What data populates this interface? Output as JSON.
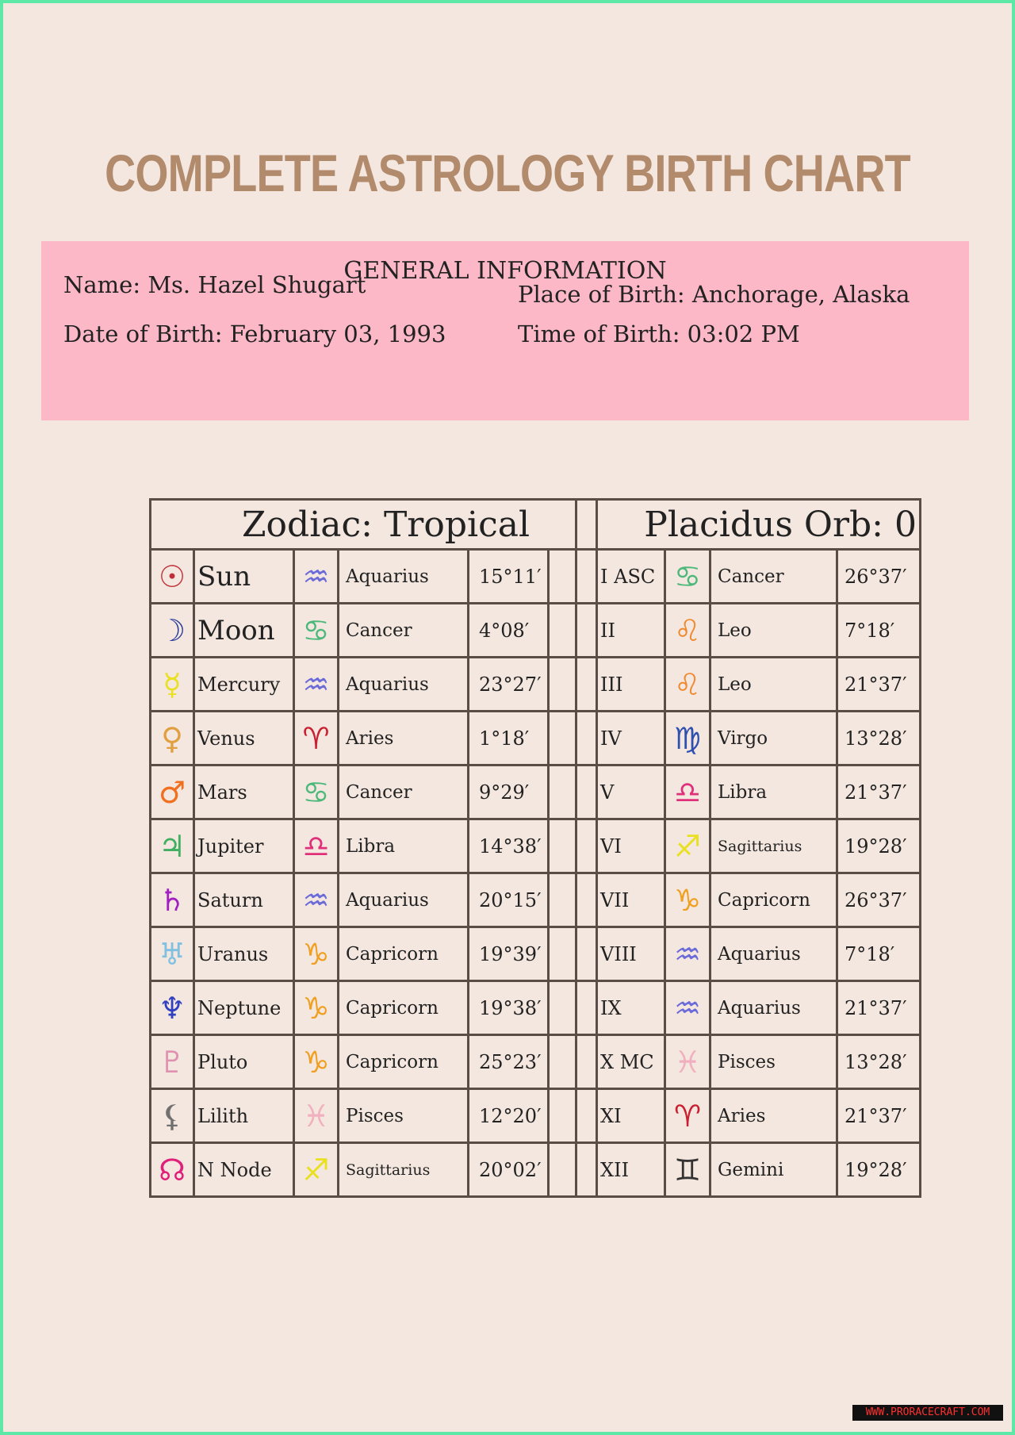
{
  "title": "COMPLETE ASTROLOGY BIRTH CHART",
  "general": {
    "heading": "GENERAL INFORMATION",
    "name": "Name: Ms. Hazel Shugart",
    "dob": "Date of Birth: February 03, 1993",
    "pob": "Place of Birth: Anchorage, Alaska",
    "tob": "Time of Birth: 03:02 PM"
  },
  "zodiac_header": "Zodiac: Tropical",
  "house_header": "Placidus Orb: 0",
  "planets": [
    {
      "glyph": "☉",
      "color": "#c0303a",
      "name": "Sun",
      "sign_glyph": "♒",
      "sign_color": "#6a6ad8",
      "sign": "Aquarius",
      "deg": "15°11′"
    },
    {
      "glyph": "☽",
      "color": "#2a3a9a",
      "name": "Moon",
      "sign_glyph": "♋",
      "sign_color": "#4cb87a",
      "sign": "Cancer",
      "deg": "4°08′"
    },
    {
      "glyph": "☿",
      "color": "#e8e020",
      "name": "Mercury",
      "sign_glyph": "♒",
      "sign_color": "#6a6ad8",
      "sign": "Aquarius",
      "deg": "23°27′"
    },
    {
      "glyph": "♀",
      "color": "#e0a040",
      "name": "Venus",
      "sign_glyph": "♈",
      "sign_color": "#c82030",
      "sign": "Aries",
      "deg": "1°18′"
    },
    {
      "glyph": "♂",
      "color": "#f07020",
      "name": "Mars",
      "sign_glyph": "♋",
      "sign_color": "#4cb87a",
      "sign": "Cancer",
      "deg": "9°29′"
    },
    {
      "glyph": "♃",
      "color": "#40b060",
      "name": "Jupiter",
      "sign_glyph": "♎",
      "sign_color": "#e0307a",
      "sign": "Libra",
      "deg": "14°38′"
    },
    {
      "glyph": "♄",
      "color": "#a020c0",
      "name": "Saturn",
      "sign_glyph": "♒",
      "sign_color": "#6a6ad8",
      "sign": "Aquarius",
      "deg": "20°15′"
    },
    {
      "glyph": "♅",
      "color": "#80c0e0",
      "name": "Uranus",
      "sign_glyph": "♑",
      "sign_color": "#f0a020",
      "sign": "Capricorn",
      "deg": "19°39′"
    },
    {
      "glyph": "♆",
      "color": "#3040c0",
      "name": "Neptune",
      "sign_glyph": "♑",
      "sign_color": "#f0a020",
      "sign": "Capricorn",
      "deg": "19°38′"
    },
    {
      "glyph": "♇",
      "color": "#e090b0",
      "name": "Pluto",
      "sign_glyph": "♑",
      "sign_color": "#f0a020",
      "sign": "Capricorn",
      "deg": "25°23′"
    },
    {
      "glyph": "⚸",
      "color": "#707070",
      "name": "Lilith",
      "sign_glyph": "♓",
      "sign_color": "#f0b0c0",
      "sign": "Pisces",
      "deg": "12°20′"
    },
    {
      "glyph": "☊",
      "color": "#e0207a",
      "name": "N Node",
      "sign_glyph": "♐",
      "sign_color": "#e8e020",
      "sign": "Sagittarius",
      "deg": "20°02′"
    }
  ],
  "houses": [
    {
      "house": "I ASC",
      "sign_glyph": "♋",
      "sign_color": "#4cb87a",
      "sign": "Cancer",
      "deg": "26°37′"
    },
    {
      "house": "II",
      "sign_glyph": "♌",
      "sign_color": "#f08a30",
      "sign": "Leo",
      "deg": "7°18′"
    },
    {
      "house": "III",
      "sign_glyph": "♌",
      "sign_color": "#f08a30",
      "sign": "Leo",
      "deg": "21°37′"
    },
    {
      "house": "IV",
      "sign_glyph": "♍",
      "sign_color": "#3050b0",
      "sign": "Virgo",
      "deg": "13°28′"
    },
    {
      "house": "V",
      "sign_glyph": "♎",
      "sign_color": "#e0307a",
      "sign": "Libra",
      "deg": "21°37′"
    },
    {
      "house": "VI",
      "sign_glyph": "♐",
      "sign_color": "#e8e020",
      "sign": "Sagittarius",
      "deg": "19°28′"
    },
    {
      "house": "VII",
      "sign_glyph": "♑",
      "sign_color": "#f0a020",
      "sign": "Capricorn",
      "deg": "26°37′"
    },
    {
      "house": "VIII",
      "sign_glyph": "♒",
      "sign_color": "#6a6ad8",
      "sign": "Aquarius",
      "deg": "7°18′"
    },
    {
      "house": "IX",
      "sign_glyph": "♒",
      "sign_color": "#6a6ad8",
      "sign": "Aquarius",
      "deg": "21°37′"
    },
    {
      "house": "X MC",
      "sign_glyph": "♓",
      "sign_color": "#f0b0c0",
      "sign": "Pisces",
      "deg": "13°28′"
    },
    {
      "house": "XI",
      "sign_glyph": "♈",
      "sign_color": "#c82030",
      "sign": "Aries",
      "deg": "21°37′"
    },
    {
      "house": "XII",
      "sign_glyph": "♊",
      "sign_color": "#333333",
      "sign": "Gemini",
      "deg": "19°28′"
    }
  ],
  "watermark": "WWW.PRORACECRAFT.COM"
}
